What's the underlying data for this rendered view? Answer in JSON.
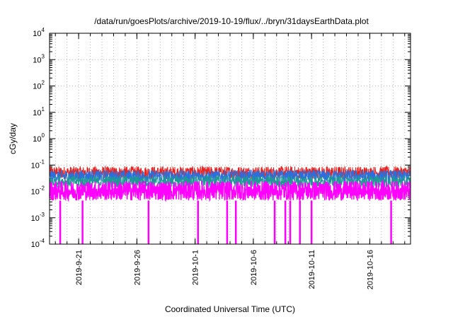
{
  "chart_data": {
    "type": "line",
    "title": "/data/run/goesPlots/archive/2019-10-19/flux/../bryn/31daysEarthData.plot",
    "xlabel": "Coordinated Universal Time (UTC)",
    "ylabel": "cGy/day",
    "yscale": "log",
    "ylim": [
      0.0001,
      10000
    ],
    "xlim": [
      "2019-09-18T12:00",
      "2019-10-19T12:00"
    ],
    "grid": true,
    "x_ticks": [
      "2019-9-21",
      "2019-9-26",
      "2019-10-1",
      "2019-10-6",
      "2019-10-11",
      "2019-10-16"
    ],
    "y_ticks": [
      {
        "base": "10",
        "exp": "-4"
      },
      {
        "base": "10",
        "exp": "-3"
      },
      {
        "base": "10",
        "exp": "-2"
      },
      {
        "base": "10",
        "exp": "-1"
      },
      {
        "base": "10",
        "exp": "0"
      },
      {
        "base": "10",
        "exp": "1"
      },
      {
        "base": "10",
        "exp": "2"
      },
      {
        "base": "10",
        "exp": "3"
      },
      {
        "base": "10",
        "exp": "4"
      }
    ],
    "series": [
      {
        "color": "#e8231f",
        "low": 0.03,
        "high": 0.09
      },
      {
        "color": "#2a6fe0",
        "low": 0.022,
        "high": 0.065
      },
      {
        "color": "#1e9a93",
        "low": 0.014,
        "high": 0.04
      },
      {
        "color": "#ff00ff",
        "low": 0.0045,
        "high": 0.025
      }
    ],
    "dropouts": {
      "series": "#ff00ff",
      "value": 0.0001,
      "dates": [
        "2019-09-19T10:00",
        "2019-09-21T08:00",
        "2019-09-27T00:00",
        "2019-10-01T06:00",
        "2019-10-03T18:00",
        "2019-10-04T12:00",
        "2019-10-07T20:00",
        "2019-10-08T18:00",
        "2019-10-09T04:00",
        "2019-10-10T00:00",
        "2019-10-11T00:00",
        "2019-10-17T20:00"
      ]
    }
  }
}
